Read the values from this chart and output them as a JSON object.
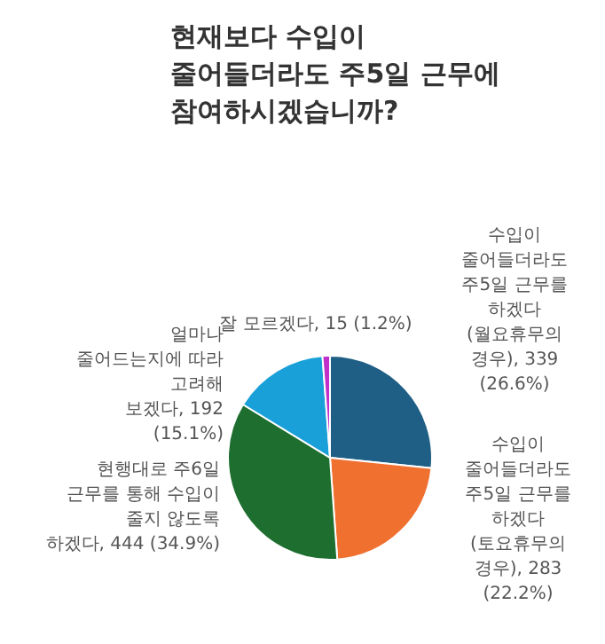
{
  "chart_data": {
    "type": "pie",
    "title": "현재보다 수입이 줄어들더라도 주5일 근무에 참여하시겠습니까?",
    "categories": [
      "수입이 줄어들더라도 주5일 근무를 하겠다 (월요휴무의 경우)",
      "수입이 줄어들더라도 주5일 근무를 하겠다 (토요휴무의 경우)",
      "현행대로 주6일 근무를 통해 수입이 줄지 않도록 하겠다",
      "얼마나 줄어드는지에 따라 고려해 보겠다",
      "잘 모르겠다"
    ],
    "values": [
      339,
      283,
      444,
      192,
      15
    ],
    "value_labels": [
      "339 (26.6%)",
      "283 (22.2%)",
      "444 (34.9%)",
      "192 (15.1%)",
      "15 (1.2%)"
    ],
    "colors": [
      "#1f5f85",
      "#f07030",
      "#1e6e30",
      "#1aa0d8",
      "#c030c8"
    ],
    "legend": false
  }
}
